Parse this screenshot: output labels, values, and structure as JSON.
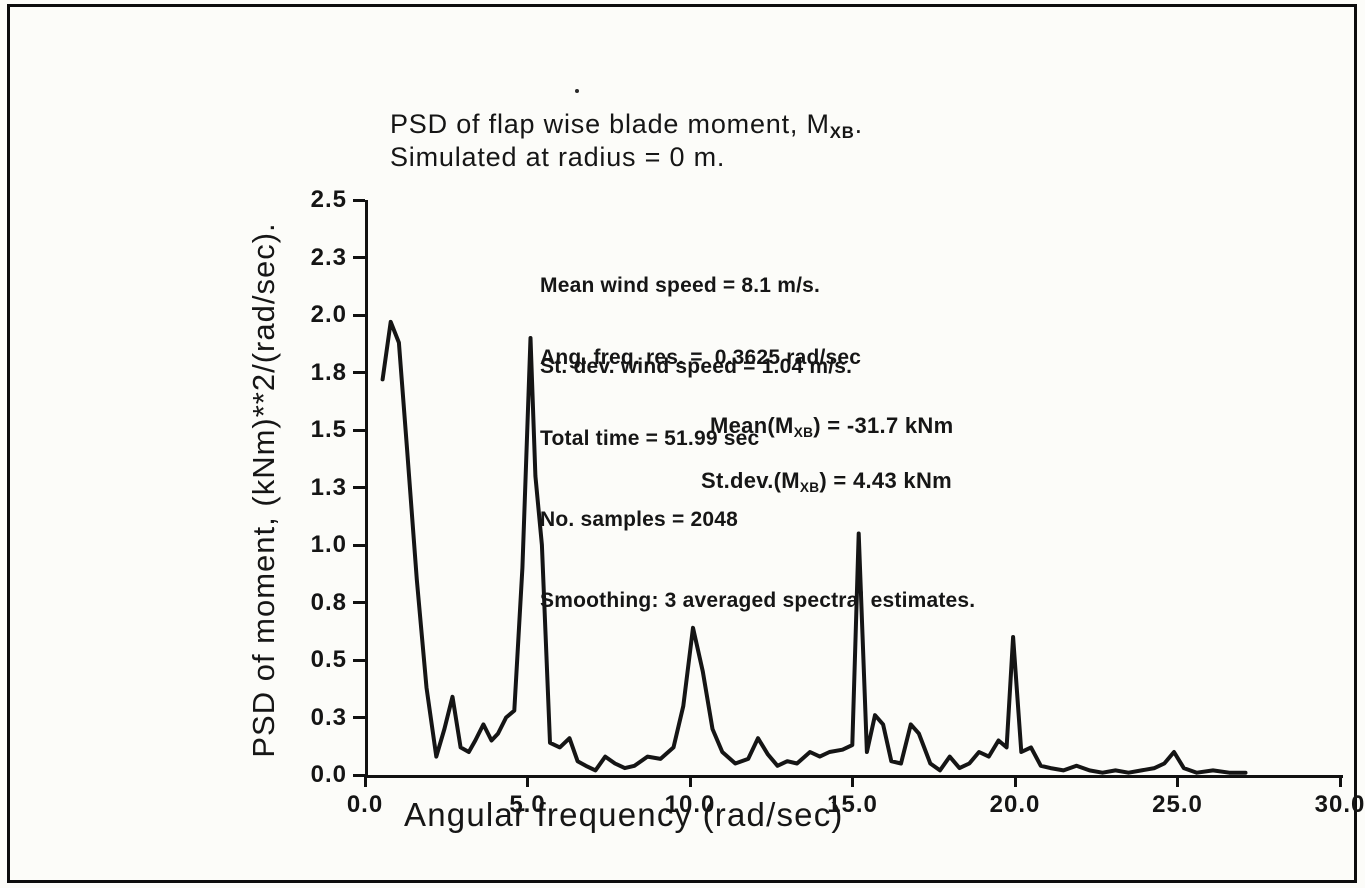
{
  "figure": {
    "title_pre": "PSD of flap wise blade moment, M",
    "title_sub": "XB",
    "title_post": ".",
    "subtitle": "Simulated at radius = 0 m.",
    "ink": "#151515",
    "paper": "#fcfcf9"
  },
  "annotations": {
    "wind": [
      "Mean wind speed = 8.1 m/s.",
      "St. dev. wind speed = 1.04 m/s."
    ],
    "sim": [
      "Ang. freq. res. =  0.3625 rad/sec",
      "Total time = 51.99 sec",
      "No. samples = 2048",
      "Smoothing: 3 averaged spectral estimates."
    ],
    "mean_pre": "Mean(M",
    "mean_sub": "XB",
    "mean_post": ") = -31.7 kNm",
    "stdev_pre": "St.dev.(M",
    "stdev_sub": "XB",
    "stdev_post": ") = 4.43 kNm"
  },
  "chart_data": {
    "type": "line",
    "title": "PSD of flap wise blade moment, M_XB. Simulated at radius = 0 m.",
    "xlabel": "Angular frequency (rad/sec)",
    "ylabel": "PSD of moment, (kNm)**2/(rad/sec).",
    "x_axis": {
      "min": 0,
      "max": 30,
      "ticks": [
        "0.0",
        "5.0",
        "10.0",
        "15.0",
        "20.0",
        "25.0",
        "30.0"
      ]
    },
    "y_axis": {
      "min": 0,
      "max": 2.5,
      "tick_step": 0.25,
      "ticks": [
        "0.0",
        "0.3",
        "0.5",
        "0.8",
        "1.0",
        "1.3",
        "1.5",
        "1.8",
        "2.0",
        "2.3",
        "2.5"
      ]
    },
    "grid": false,
    "legend": "none",
    "series": [
      {
        "name": "PSD of flap wise blade moment",
        "points": [
          [
            0.45,
            1.72
          ],
          [
            0.7,
            1.97
          ],
          [
            0.95,
            1.88
          ],
          [
            1.2,
            1.42
          ],
          [
            1.5,
            0.85
          ],
          [
            1.8,
            0.38
          ],
          [
            2.1,
            0.08
          ],
          [
            2.35,
            0.2
          ],
          [
            2.6,
            0.34
          ],
          [
            2.85,
            0.12
          ],
          [
            3.1,
            0.1
          ],
          [
            3.3,
            0.15
          ],
          [
            3.55,
            0.22
          ],
          [
            3.8,
            0.15
          ],
          [
            4.0,
            0.18
          ],
          [
            4.25,
            0.25
          ],
          [
            4.5,
            0.28
          ],
          [
            4.75,
            0.9
          ],
          [
            5.0,
            1.9
          ],
          [
            5.15,
            1.3
          ],
          [
            5.35,
            1.0
          ],
          [
            5.6,
            0.14
          ],
          [
            5.9,
            0.12
          ],
          [
            6.2,
            0.16
          ],
          [
            6.45,
            0.06
          ],
          [
            6.7,
            0.04
          ],
          [
            7.0,
            0.02
          ],
          [
            7.3,
            0.08
          ],
          [
            7.6,
            0.05
          ],
          [
            7.9,
            0.03
          ],
          [
            8.2,
            0.04
          ],
          [
            8.6,
            0.08
          ],
          [
            9.0,
            0.07
          ],
          [
            9.4,
            0.12
          ],
          [
            9.7,
            0.3
          ],
          [
            10.0,
            0.64
          ],
          [
            10.3,
            0.45
          ],
          [
            10.6,
            0.2
          ],
          [
            10.9,
            0.1
          ],
          [
            11.3,
            0.05
          ],
          [
            11.7,
            0.07
          ],
          [
            12.0,
            0.16
          ],
          [
            12.3,
            0.09
          ],
          [
            12.6,
            0.04
          ],
          [
            12.9,
            0.06
          ],
          [
            13.2,
            0.05
          ],
          [
            13.6,
            0.1
          ],
          [
            13.9,
            0.08
          ],
          [
            14.2,
            0.1
          ],
          [
            14.6,
            0.11
          ],
          [
            14.9,
            0.13
          ],
          [
            15.1,
            1.05
          ],
          [
            15.35,
            0.1
          ],
          [
            15.6,
            0.26
          ],
          [
            15.85,
            0.22
          ],
          [
            16.1,
            0.06
          ],
          [
            16.4,
            0.05
          ],
          [
            16.7,
            0.22
          ],
          [
            16.95,
            0.18
          ],
          [
            17.3,
            0.05
          ],
          [
            17.6,
            0.02
          ],
          [
            17.9,
            0.08
          ],
          [
            18.2,
            0.03
          ],
          [
            18.5,
            0.05
          ],
          [
            18.8,
            0.1
          ],
          [
            19.1,
            0.08
          ],
          [
            19.4,
            0.15
          ],
          [
            19.65,
            0.12
          ],
          [
            19.85,
            0.6
          ],
          [
            20.1,
            0.1
          ],
          [
            20.4,
            0.12
          ],
          [
            20.7,
            0.04
          ],
          [
            21.0,
            0.03
          ],
          [
            21.4,
            0.02
          ],
          [
            21.8,
            0.04
          ],
          [
            22.2,
            0.02
          ],
          [
            22.6,
            0.01
          ],
          [
            23.0,
            0.02
          ],
          [
            23.4,
            0.01
          ],
          [
            23.8,
            0.02
          ],
          [
            24.2,
            0.03
          ],
          [
            24.5,
            0.05
          ],
          [
            24.8,
            0.1
          ],
          [
            25.1,
            0.03
          ],
          [
            25.5,
            0.01
          ],
          [
            26.0,
            0.02
          ],
          [
            26.5,
            0.01
          ],
          [
            27.0,
            0.01
          ]
        ]
      }
    ]
  }
}
